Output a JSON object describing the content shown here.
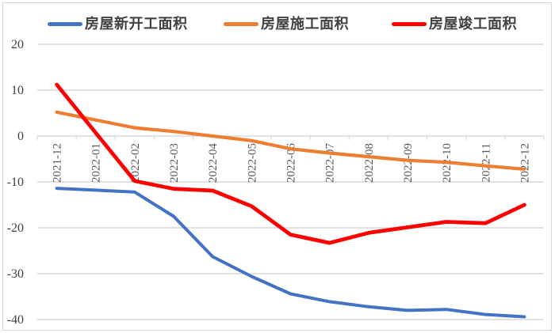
{
  "chart_data": {
    "type": "line",
    "title": "",
    "xlabel": "",
    "ylabel": "",
    "categories": [
      "2021-12",
      "2022-01",
      "2022-02",
      "2022-03",
      "2022-04",
      "2022-05",
      "2022-06",
      "2022-07",
      "2022-08",
      "2022-09",
      "2022-10",
      "2022-11",
      "2022-12"
    ],
    "series": [
      {
        "name": "房屋新开工面积",
        "color": "#4472C4",
        "values": [
          -11.4,
          -11.8,
          -12.2,
          -17.5,
          -26.3,
          -30.6,
          -34.4,
          -36.1,
          -37.2,
          -38.0,
          -37.8,
          -38.9,
          -39.4
        ]
      },
      {
        "name": "房屋施工面积",
        "color": "#ED7D31",
        "values": [
          5.2,
          3.5,
          1.8,
          1.0,
          0.0,
          -1.0,
          -2.8,
          -3.7,
          -4.5,
          -5.3,
          -5.7,
          -6.5,
          -7.2
        ]
      },
      {
        "name": "房屋竣工面积",
        "color": "#FF0000",
        "values": [
          11.2,
          0.7,
          -9.8,
          -11.5,
          -11.9,
          -15.3,
          -21.5,
          -23.3,
          -21.1,
          -19.9,
          -18.7,
          -19.0,
          -15.0
        ]
      }
    ],
    "ylim": [
      -40,
      20
    ],
    "yticks": [
      20,
      10,
      0,
      -10,
      -20,
      -30,
      -40
    ],
    "grid": true,
    "legend_position": "top",
    "axis_color": "#d9d9d9",
    "y_label_color": "#404040",
    "x_label_color": "#595959"
  }
}
